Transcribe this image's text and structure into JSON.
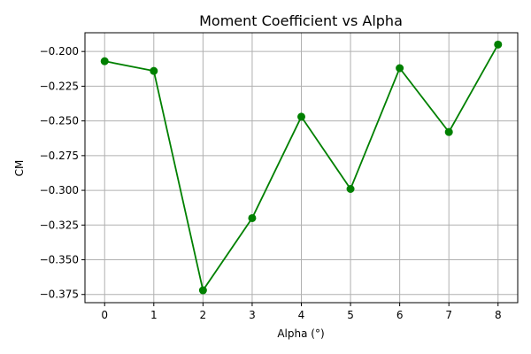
{
  "chart_data": {
    "type": "line",
    "title": "Moment Coefficient vs Alpha",
    "xlabel": "Alpha (°)",
    "ylabel": "CM",
    "x": [
      0,
      1,
      2,
      3,
      4,
      5,
      6,
      7,
      8
    ],
    "series": [
      {
        "values": [
          -0.207,
          -0.214,
          -0.372,
          -0.32,
          -0.247,
          -0.299,
          -0.212,
          -0.258,
          -0.195
        ],
        "color": "#008000",
        "marker": "circle"
      }
    ],
    "x_ticks": [
      "0",
      "1",
      "2",
      "3",
      "4",
      "5",
      "6",
      "7",
      "8"
    ],
    "y_ticks": [
      -0.375,
      -0.35,
      -0.325,
      -0.3,
      -0.275,
      -0.25,
      -0.225,
      -0.2
    ],
    "y_tick_labels": [
      "−0.375",
      "−0.350",
      "−0.325",
      "−0.300",
      "−0.275",
      "−0.250",
      "−0.225",
      "−0.200"
    ],
    "xlim": [
      -0.4,
      8.4
    ],
    "ylim": [
      -0.3809,
      -0.1865
    ],
    "grid": true
  }
}
